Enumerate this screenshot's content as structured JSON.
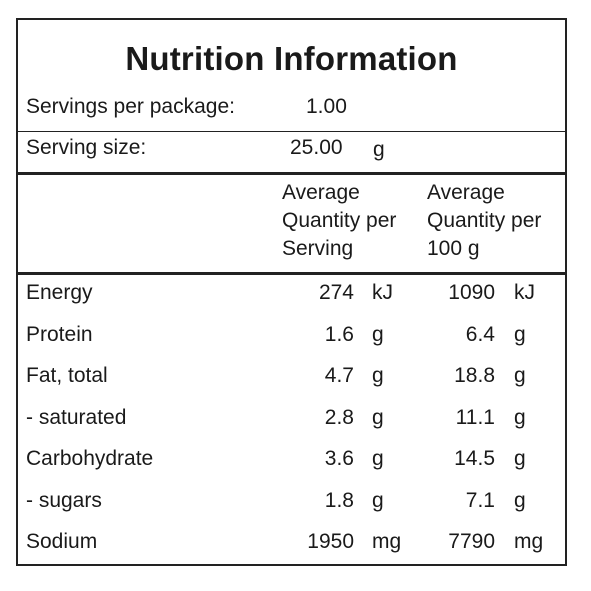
{
  "panel": {
    "title": "Nutrition Information",
    "servings_per_package": {
      "label": "Servings per package:",
      "value": "1.00"
    },
    "serving_size": {
      "label": "Serving size:",
      "value": "25.00",
      "unit": "g"
    },
    "headers": {
      "per_serving": [
        "Average",
        "Quantity per",
        "Serving"
      ],
      "per_100g": [
        "Average",
        "Quantity per",
        "100 g"
      ]
    },
    "rows": [
      {
        "name": "Energy",
        "serving": "274",
        "serving_unit": "kJ",
        "per100": "1090",
        "per100_unit": "kJ"
      },
      {
        "name": "Protein",
        "serving": "1.6",
        "serving_unit": "g",
        "per100": "6.4",
        "per100_unit": "g"
      },
      {
        "name": "Fat, total",
        "serving": "4.7",
        "serving_unit": "g",
        "per100": "18.8",
        "per100_unit": "g"
      },
      {
        "name": "- saturated",
        "serving": "2.8",
        "serving_unit": "g",
        "per100": "11.1",
        "per100_unit": "g"
      },
      {
        "name": "Carbohydrate",
        "serving": "3.6",
        "serving_unit": "g",
        "per100": "14.5",
        "per100_unit": "g"
      },
      {
        "name": "- sugars",
        "serving": "1.8",
        "serving_unit": "g",
        "per100": "7.1",
        "per100_unit": "g"
      },
      {
        "name": "Sodium",
        "serving": "1950",
        "serving_unit": "mg",
        "per100": "7790",
        "per100_unit": "mg"
      }
    ]
  }
}
